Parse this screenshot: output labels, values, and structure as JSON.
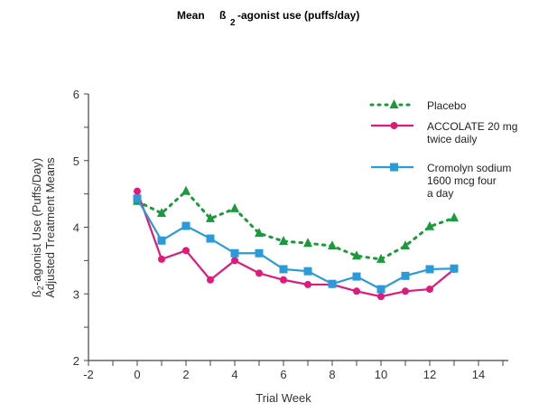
{
  "chart_data": {
    "type": "line",
    "title": "Mean ß2-agonist use (puffs/day)",
    "title_parts": {
      "prefix": "Mean",
      "beta": "ß",
      "subscript": "2",
      "suffix": "-agonist use (puffs/day)"
    },
    "xlabel": "Trial Week",
    "ylabel_line1": "ß2-agonist Use (Puffs/Day)",
    "ylabel_line1_parts": {
      "beta": "ß",
      "subscript": "2",
      "suffix": "-agonist Use (Puffs/Day)"
    },
    "ylabel_line2": "Adjusted Treatment Means",
    "xlim": [
      -2,
      15
    ],
    "ylim": [
      2,
      6
    ],
    "x_ticks": [
      -2,
      0,
      2,
      4,
      6,
      8,
      10,
      12,
      14
    ],
    "x_minor_ticks": [
      -1,
      1,
      3,
      5,
      7,
      9,
      11,
      13,
      15
    ],
    "y_ticks": [
      2,
      3,
      4,
      5,
      6
    ],
    "y_minor_ticks": [
      2.5,
      3.5,
      4.5,
      5.5
    ],
    "grid": false,
    "legend_position": "top-right",
    "x": [
      0,
      1,
      2,
      3,
      4,
      5,
      6,
      7,
      8,
      9,
      10,
      11,
      12,
      13
    ],
    "series": [
      {
        "name": "Placebo",
        "legend_lines": [
          "Placebo"
        ],
        "color": "#1a9a3a",
        "marker": "triangle",
        "line_style": "dotted",
        "values": [
          4.39,
          4.21,
          4.54,
          4.13,
          4.28,
          3.91,
          3.79,
          3.76,
          3.72,
          3.57,
          3.52,
          3.72,
          4.01,
          4.14
        ]
      },
      {
        "name": "ACCOLATE 20 mg twice daily",
        "legend_lines": [
          "ACCOLATE 20 mg",
          "twice daily"
        ],
        "color": "#e0197a",
        "marker": "circle",
        "line_style": "solid",
        "values": [
          4.54,
          3.52,
          3.65,
          3.21,
          3.5,
          3.31,
          3.21,
          3.14,
          3.14,
          3.04,
          2.96,
          3.04,
          3.07,
          3.37
        ]
      },
      {
        "name": "Cromolyn sodium 1600 mcg four a day",
        "legend_lines": [
          "Cromolyn sodium",
          "1600 mcg four",
          "a day"
        ],
        "color": "#2a9ad8",
        "marker": "square",
        "line_style": "solid",
        "values": [
          4.43,
          3.8,
          4.02,
          3.83,
          3.61,
          3.61,
          3.37,
          3.34,
          3.15,
          3.26,
          3.07,
          3.27,
          3.37,
          3.38
        ]
      }
    ]
  }
}
